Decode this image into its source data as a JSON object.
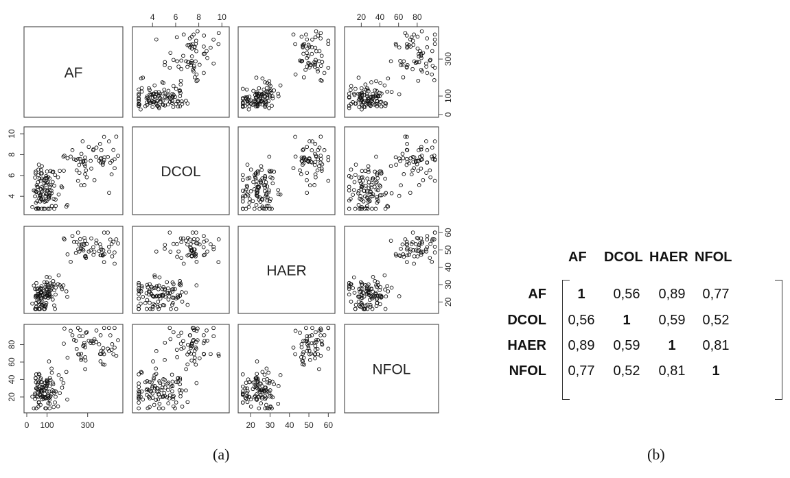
{
  "variables": [
    "AF",
    "DCOL",
    "HAER",
    "NFOL"
  ],
  "scatter_axis_ticks": {
    "AF": [
      "0",
      "100",
      "300"
    ],
    "AF_vals": [
      0,
      100,
      300
    ],
    "DCOL": [
      "4",
      "6",
      "8",
      "10"
    ],
    "DCOL_vals": [
      4,
      6,
      8,
      10
    ],
    "HAER": [
      "20",
      "30",
      "40",
      "50",
      "60"
    ],
    "HAER_vals": [
      20,
      30,
      40,
      50,
      60
    ],
    "NFOL": [
      "20",
      "40",
      "60",
      "80"
    ],
    "NFOL_vals": [
      20,
      40,
      60,
      80
    ]
  },
  "chart_data": [
    {
      "type": "scatter",
      "subtype": "scatterplot-matrix",
      "variables": [
        "AF",
        "DCOL",
        "HAER",
        "NFOL"
      ],
      "ranges": {
        "AF": [
          0,
          460
        ],
        "DCOL": [
          2.5,
          10.4
        ],
        "HAER": [
          15,
          62
        ],
        "NFOL": [
          5,
          100
        ]
      },
      "n_points": 160,
      "correlation": [
        [
          1,
          0.56,
          0.89,
          0.77
        ],
        [
          0.56,
          1,
          0.59,
          0.52
        ],
        [
          0.89,
          0.59,
          1,
          0.81
        ],
        [
          0.77,
          0.52,
          0.81,
          1
        ]
      ]
    },
    {
      "type": "table",
      "columns": [
        "AF",
        "DCOL",
        "HAER",
        "NFOL"
      ],
      "rows": [
        {
          "label": "AF",
          "values": [
            "1",
            "0,56",
            "0,89",
            "0,77"
          ]
        },
        {
          "label": "DCOL",
          "values": [
            "0,56",
            "1",
            "0,59",
            "0,52"
          ]
        },
        {
          "label": "HAER",
          "values": [
            "0,89",
            "0,59",
            "1",
            "0,81"
          ]
        },
        {
          "label": "NFOL",
          "values": [
            "0,77",
            "0,52",
            "0,81",
            "1"
          ]
        }
      ]
    }
  ],
  "captions": {
    "a": "(a)",
    "b": "(b)"
  }
}
